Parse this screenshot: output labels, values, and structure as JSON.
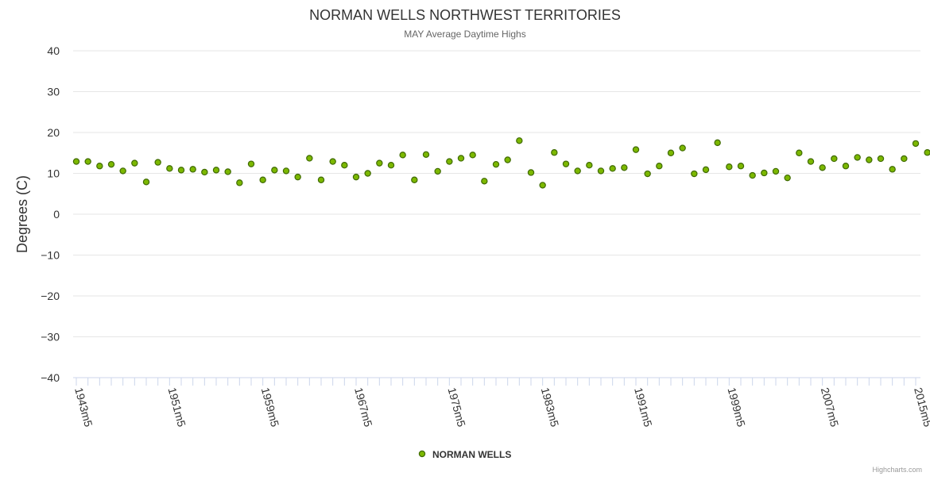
{
  "credits": "Highcharts.com",
  "colors": {
    "marker_fill": "#7cb800",
    "marker_stroke": "#3f6a00",
    "grid": "#e6e6e6",
    "axis": "#ccd6eb",
    "text": "#333333",
    "subtext": "#666666"
  },
  "chart_data": {
    "type": "scatter",
    "title": "NORMAN WELLS NORTHWEST TERRITORIES",
    "subtitle": "MAY Average Daytime Highs",
    "xlabel": "",
    "ylabel": "Degrees (C)",
    "ylim": [
      -40,
      40
    ],
    "y_ticks": [
      40,
      30,
      20,
      10,
      0,
      -10,
      -20,
      -30,
      -40
    ],
    "y_tick_labels": [
      "40",
      "30",
      "20",
      "10",
      "0",
      "−10",
      "−20",
      "−30",
      "−40"
    ],
    "x_tick_labels": [
      "1943m5",
      "1951m5",
      "1959m5",
      "1967m5",
      "1975m5",
      "1983m5",
      "1991m5",
      "1999m5",
      "2007m5",
      "2015m5"
    ],
    "x_start_year": 1943,
    "x_end_year": 2015,
    "legend": [
      "NORMAN WELLS"
    ],
    "series": [
      {
        "name": "NORMAN WELLS",
        "values": [
          12.9,
          12.9,
          11.8,
          12.2,
          10.6,
          12.5,
          7.9,
          12.7,
          11.2,
          10.8,
          11.0,
          10.3,
          10.8,
          10.4,
          7.7,
          12.3,
          8.4,
          10.8,
          10.6,
          9.1,
          13.7,
          8.4,
          12.9,
          12.0,
          9.1,
          10.0,
          12.5,
          12.0,
          14.5,
          8.4,
          14.6,
          10.5,
          12.9,
          13.7,
          14.5,
          8.1,
          12.2,
          13.3,
          18.0,
          10.2,
          7.1,
          15.1,
          12.3,
          10.6,
          12.0,
          10.6,
          11.2,
          11.4,
          15.8,
          9.9,
          11.8,
          15.0,
          16.2,
          9.9,
          10.9,
          17.5,
          11.6,
          11.8,
          9.5,
          10.1,
          10.5,
          8.9,
          15.0,
          12.9,
          11.4,
          13.6,
          11.8,
          13.9,
          13.3,
          13.6,
          11.0,
          13.6,
          17.3,
          15.1
        ]
      }
    ]
  }
}
